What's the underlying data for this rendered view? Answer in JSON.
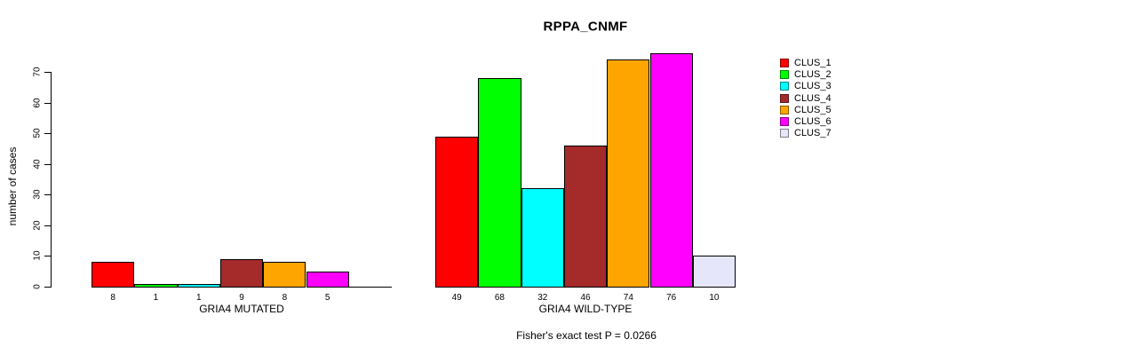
{
  "chart_data": {
    "type": "bar",
    "title": "RPPA_CNMF",
    "ylabel": "number of cases",
    "xlabel": "",
    "ylim": [
      0,
      70
    ],
    "yticks": [
      0,
      10,
      20,
      30,
      40,
      50,
      60,
      70
    ],
    "grid": false,
    "legend_position": "right",
    "legend": [
      "CLUS_1",
      "CLUS_2",
      "CLUS_3",
      "CLUS_4",
      "CLUS_5",
      "CLUS_6",
      "CLUS_7"
    ],
    "series_colors": [
      "#ff0000",
      "#00ff00",
      "#00ffff",
      "#a52a2a",
      "#ffa500",
      "#ff00ff",
      "#e6e6fa"
    ],
    "groups": [
      {
        "label": "GRIA4 MUTATED",
        "values": [
          8,
          1,
          1,
          9,
          8,
          5,
          0
        ],
        "bar_labels": [
          "8",
          "1",
          "1",
          "9",
          "8",
          "5",
          ""
        ]
      },
      {
        "label": "GRIA4 WILD-TYPE",
        "values": [
          49,
          68,
          32,
          46,
          74,
          76,
          10
        ],
        "bar_labels": [
          "49",
          "68",
          "32",
          "46",
          "74",
          "76",
          "10"
        ]
      }
    ],
    "annotation": "Fisher's exact test P = 0.0266"
  }
}
